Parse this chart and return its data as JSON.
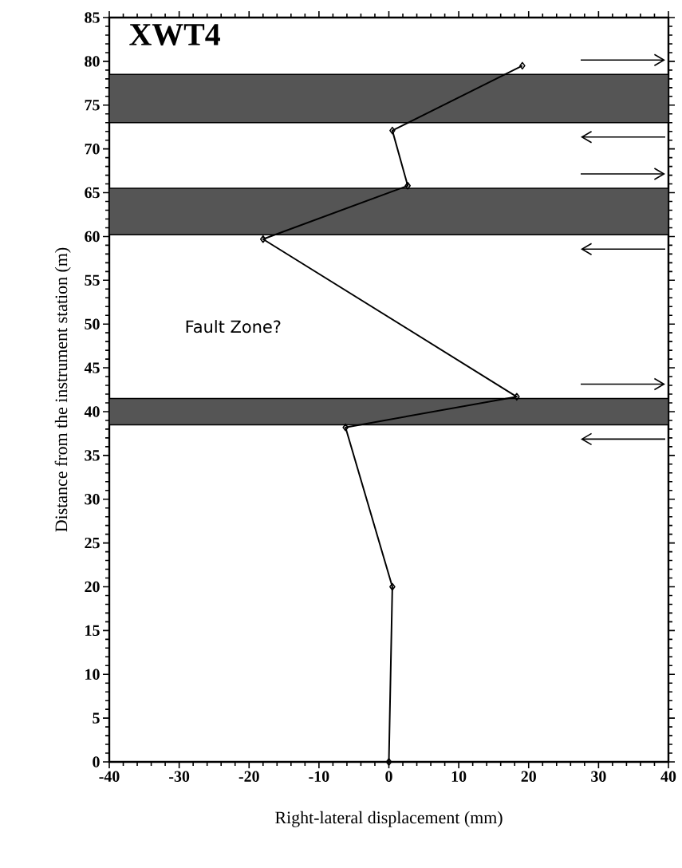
{
  "chart_data": {
    "type": "line",
    "title": "XWT4",
    "xlabel": "Right-lateral displacement (mm)",
    "ylabel": "Distance from the instrument station (m)",
    "series": [
      {
        "color": "#000000",
        "x": [
          0,
          0.5,
          -6.2,
          18.3,
          -18,
          2.7,
          0.5,
          19.1
        ],
        "values": [
          0,
          20,
          38.2,
          41.7,
          59.7,
          65.8,
          72.1,
          79.5
        ]
      }
    ],
    "marker": "diamond",
    "line_style": "solid",
    "grid": false,
    "xlim": [
      -40,
      40
    ],
    "ylim": [
      0,
      85
    ],
    "xticks": [
      -40,
      -30,
      -20,
      -10,
      0,
      10,
      20,
      30,
      40
    ],
    "yticks": [
      0,
      5,
      10,
      15,
      20,
      25,
      30,
      35,
      40,
      45,
      50,
      55,
      60,
      65,
      70,
      75,
      80,
      85
    ],
    "bands": [
      {
        "axis": "y",
        "from": 38.5,
        "to": 41.5,
        "color": "#555555"
      },
      {
        "axis": "y",
        "from": 60.2,
        "to": 65.5,
        "color": "#555555"
      },
      {
        "axis": "y",
        "from": 73,
        "to": 78.5,
        "color": "#555555"
      }
    ],
    "annotations": [
      "Fault Zone?"
    ]
  }
}
